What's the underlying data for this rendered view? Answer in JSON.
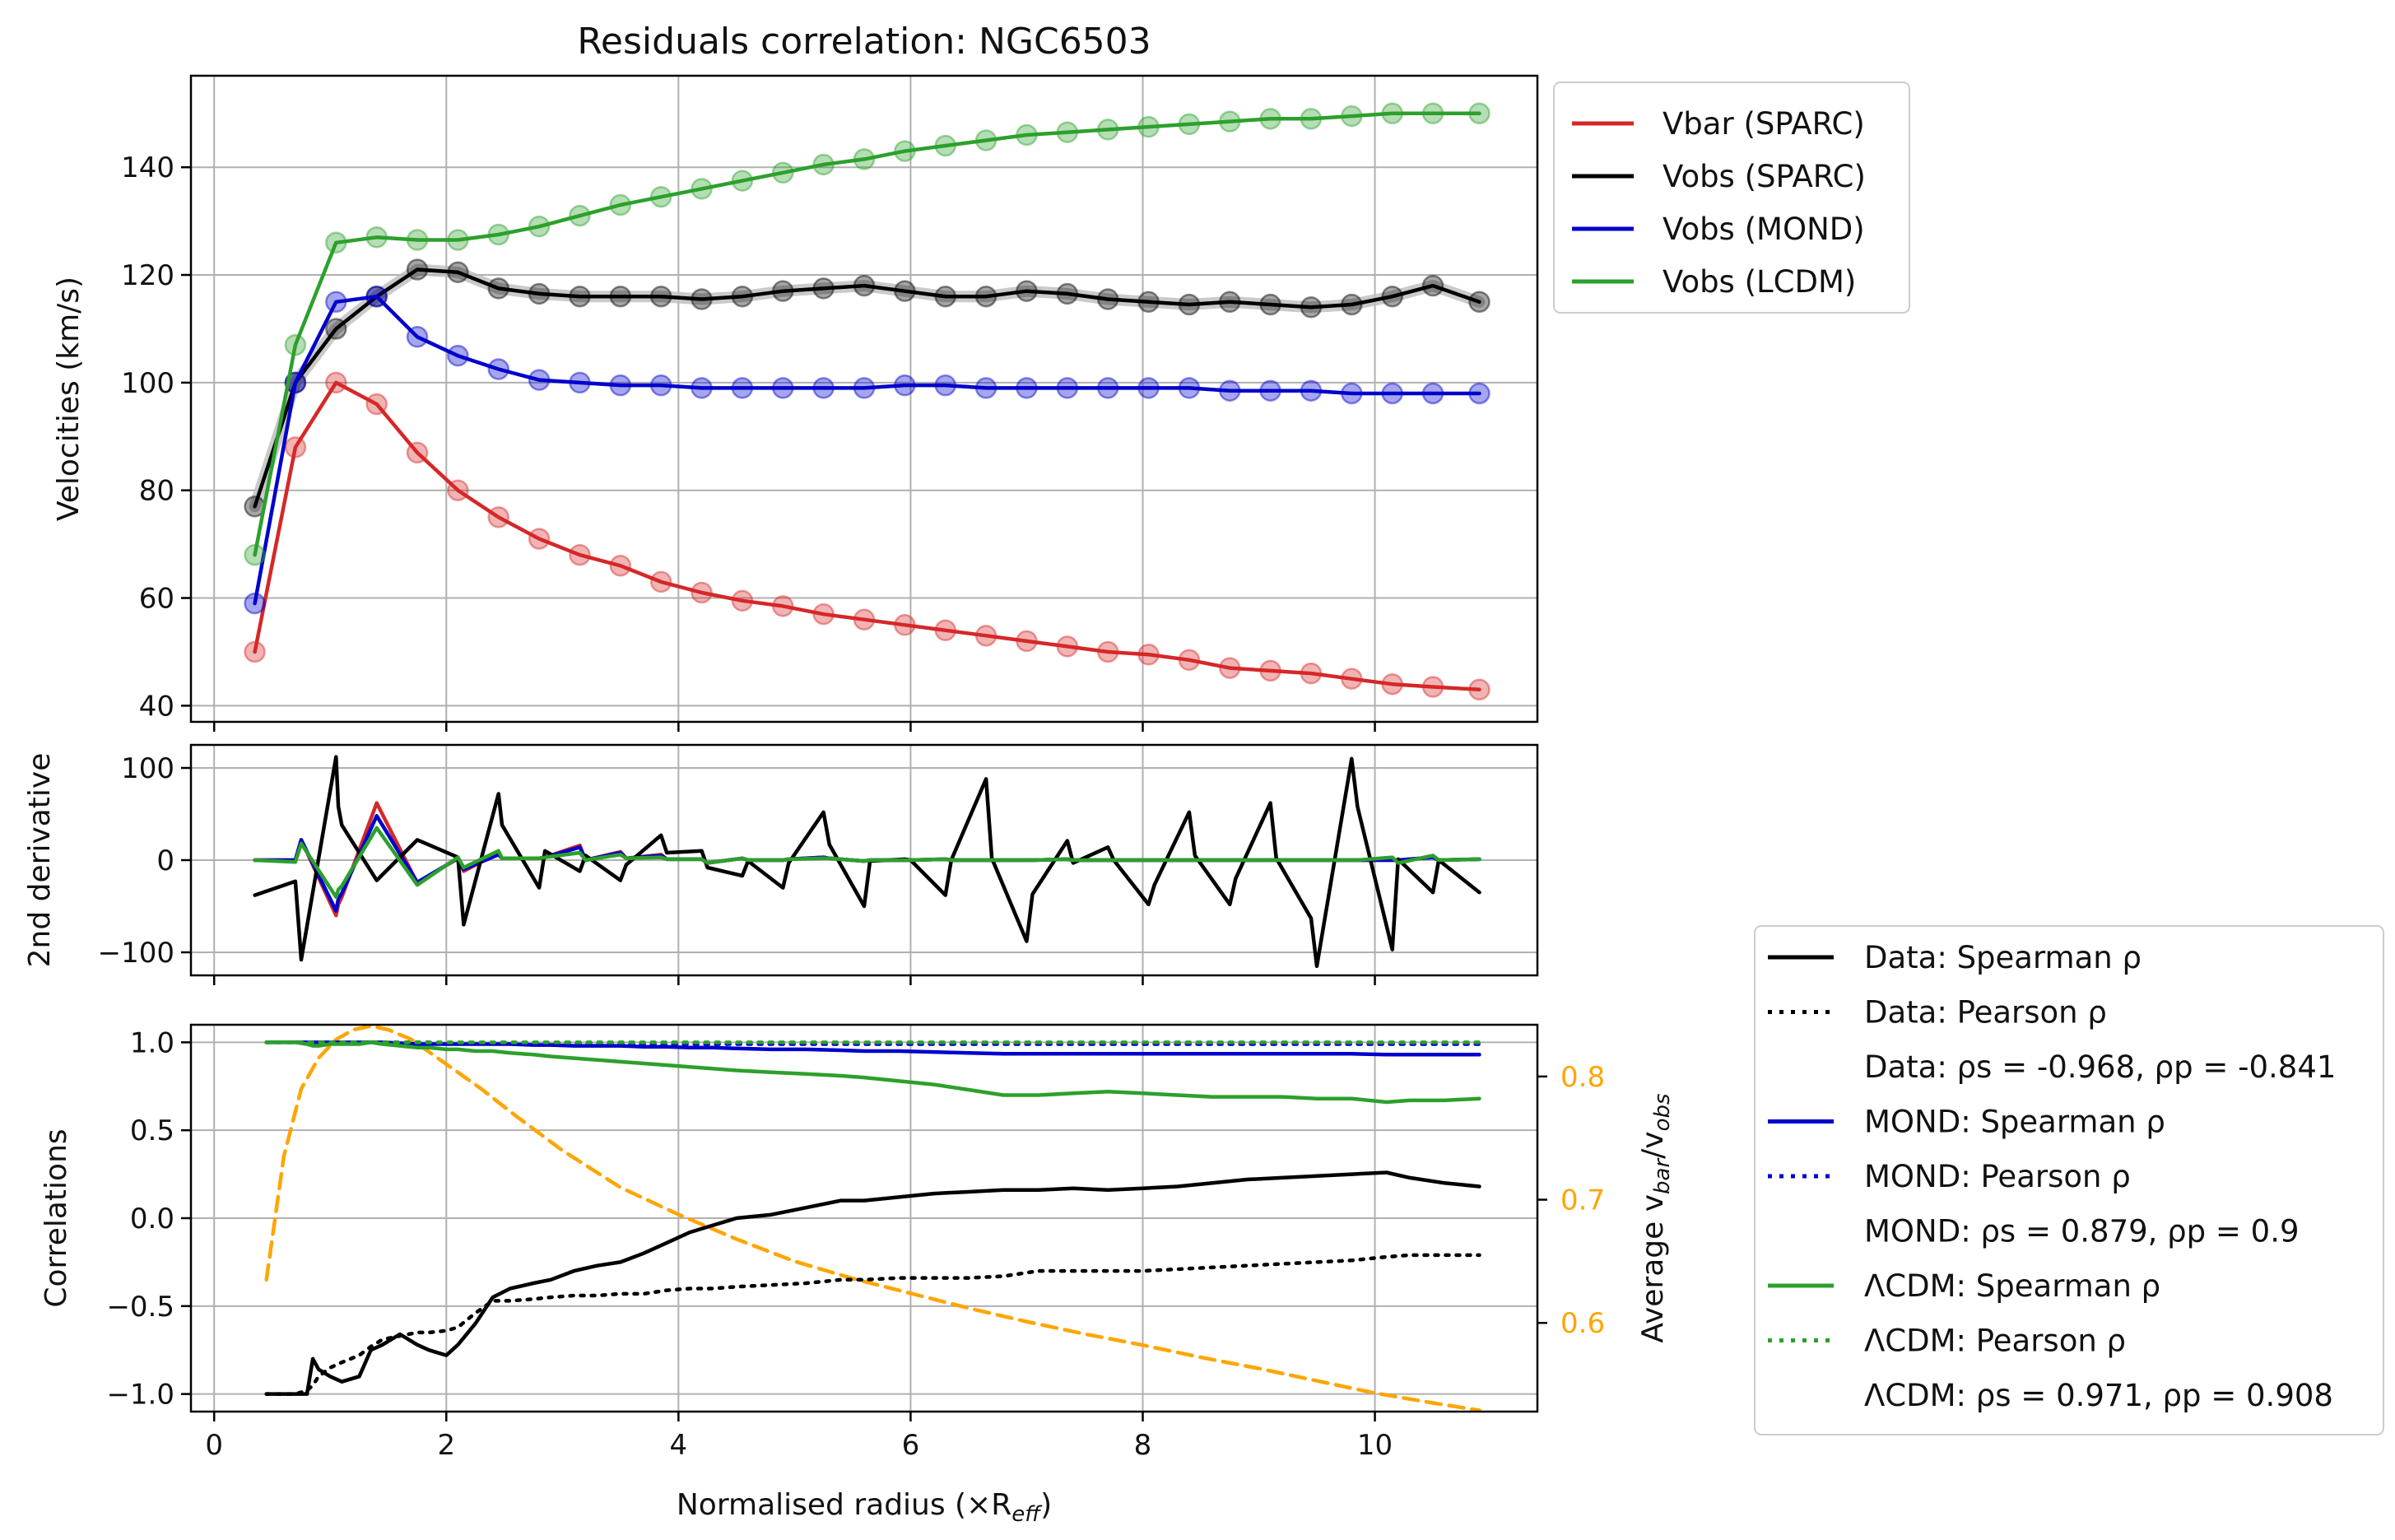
{
  "chart_data": [
    {
      "type": "line",
      "title": "Residuals correlation: NGC6503",
      "ylabel": "Velocities (km/s)",
      "xlim": [
        -0.2,
        11.4
      ],
      "ylim": [
        37,
        157
      ],
      "xticks": [
        0,
        2,
        4,
        6,
        8,
        10
      ],
      "yticks": [
        40,
        60,
        80,
        100,
        120,
        140
      ],
      "grid": true,
      "legend": {
        "placement": "outside-top-right",
        "entries": [
          "Vbar (SPARC)",
          "Vobs (SPARC)",
          "Vobs (MOND)",
          "Vobs (LCDM)"
        ]
      },
      "x": [
        0.35,
        0.7,
        1.05,
        1.4,
        1.75,
        2.1,
        2.45,
        2.8,
        3.15,
        3.5,
        3.85,
        4.2,
        4.55,
        4.9,
        5.25,
        5.6,
        5.95,
        6.3,
        6.65,
        7.0,
        7.35,
        7.7,
        8.05,
        8.4,
        8.75,
        9.1,
        9.45,
        9.8,
        10.15,
        10.5,
        10.9
      ],
      "series": [
        {
          "name": "Vbar (SPARC)",
          "color": "#d62728",
          "values": [
            50,
            88,
            100,
            96,
            87,
            80,
            75,
            71,
            68,
            66,
            63,
            61,
            59.5,
            58.5,
            57,
            56,
            55,
            54,
            53,
            52,
            51,
            50,
            49.5,
            48.5,
            47,
            46.5,
            46,
            45,
            44,
            43.5,
            43
          ]
        },
        {
          "name": "Vobs (SPARC)",
          "color": "#000000",
          "values": [
            77,
            100,
            110,
            116,
            121,
            120.5,
            117.5,
            116.5,
            116,
            116,
            116,
            115.5,
            116,
            117,
            117.5,
            118,
            117,
            116,
            116,
            117,
            116.5,
            115.5,
            115,
            114.5,
            115,
            114.5,
            114,
            114.5,
            116,
            118,
            115
          ]
        },
        {
          "name": "Vobs (MOND)",
          "color": "#0000cd",
          "values": [
            59,
            100,
            115,
            116,
            108.5,
            105,
            102.5,
            100.5,
            100,
            99.5,
            99.5,
            99,
            99,
            99,
            99,
            99,
            99.5,
            99.5,
            99,
            99,
            99,
            99,
            99,
            99,
            98.5,
            98.5,
            98.5,
            98,
            98,
            98,
            98
          ]
        },
        {
          "name": "Vobs (LCDM)",
          "color": "#2ca02c",
          "values": [
            68,
            107,
            126,
            127,
            126.5,
            126.5,
            127.5,
            129,
            131,
            133,
            134.5,
            136,
            137.5,
            139,
            140.5,
            141.5,
            143,
            144,
            145,
            146,
            146.5,
            147,
            147.5,
            148,
            148.5,
            149,
            149,
            149.5,
            150,
            150,
            150
          ]
        }
      ]
    },
    {
      "type": "line",
      "ylabel": "2nd derivative",
      "xlim": [
        -0.2,
        11.4
      ],
      "ylim": [
        -125,
        125
      ],
      "yticks": [
        100,
        0,
        -100
      ],
      "ytick_labels": [
        "100",
        "0",
        "−100"
      ],
      "grid": true,
      "x": [
        0.35,
        0.7,
        0.75,
        1.05,
        1.07,
        1.1,
        1.4,
        1.75,
        2.1,
        2.15,
        2.45,
        2.48,
        2.8,
        2.85,
        3.15,
        3.2,
        3.5,
        3.55,
        3.85,
        3.9,
        4.2,
        4.25,
        4.55,
        4.6,
        4.9,
        4.95,
        5.25,
        5.3,
        5.6,
        5.65,
        5.95,
        6.0,
        6.3,
        6.35,
        6.65,
        6.7,
        7.0,
        7.05,
        7.35,
        7.4,
        7.7,
        7.75,
        8.05,
        8.1,
        8.4,
        8.45,
        8.75,
        8.8,
        9.1,
        9.15,
        9.45,
        9.5,
        9.8,
        9.85,
        10.15,
        10.2,
        10.5,
        10.55,
        10.9
      ],
      "series": [
        {
          "name": "Data",
          "color": "#000000",
          "values": [
            -38,
            -23,
            -108,
            112,
            58,
            38,
            -22,
            22,
            3,
            -70,
            72,
            38,
            -30,
            10,
            -12,
            5,
            -22,
            -5,
            27,
            8,
            10,
            -8,
            -17,
            -1,
            -30,
            -3,
            52,
            17,
            -50,
            -1,
            1,
            0,
            -38,
            0,
            88,
            2,
            -88,
            -37,
            21,
            -3,
            14,
            0,
            -48,
            -27,
            52,
            5,
            -48,
            -20,
            62,
            2,
            -63,
            -115,
            110,
            58,
            -97,
            1,
            -35,
            0,
            -35
          ]
        },
        {
          "name": "Vbar",
          "color": "#d62728",
          "values": [
            0,
            0,
            22,
            -60,
            -48,
            -40,
            62,
            -25,
            2,
            -12,
            8,
            2,
            2,
            3,
            16,
            0,
            9,
            2,
            6,
            1,
            1,
            -3,
            2,
            0,
            0,
            1,
            3,
            2,
            -1,
            0,
            0,
            0,
            1,
            0,
            0,
            0,
            0,
            0,
            1,
            0,
            0,
            0,
            0,
            0,
            0,
            0,
            0,
            0,
            0,
            0,
            0,
            0,
            0,
            0,
            0,
            0,
            3,
            0,
            1
          ]
        },
        {
          "name": "MOND",
          "color": "#0000cd",
          "values": [
            0,
            0,
            22,
            -55,
            -42,
            -36,
            48,
            -24,
            2,
            -10,
            6,
            2,
            2,
            3,
            14,
            0,
            8,
            2,
            5,
            1,
            1,
            -3,
            2,
            0,
            0,
            1,
            3,
            2,
            -1,
            0,
            0,
            0,
            1,
            0,
            0,
            0,
            0,
            0,
            1,
            0,
            0,
            0,
            0,
            0,
            0,
            0,
            0,
            0,
            0,
            0,
            0,
            0,
            0,
            0,
            0,
            0,
            3,
            0,
            1
          ]
        },
        {
          "name": "LCDM",
          "color": "#2ca02c",
          "values": [
            0,
            -2,
            18,
            -40,
            -32,
            -28,
            35,
            -27,
            3,
            -8,
            10,
            2,
            2,
            3,
            8,
            0,
            6,
            2,
            3,
            1,
            1,
            -3,
            2,
            0,
            0,
            1,
            2,
            2,
            -1,
            0,
            0,
            0,
            1,
            0,
            0,
            0,
            0,
            0,
            1,
            0,
            0,
            0,
            0,
            0,
            0,
            0,
            0,
            0,
            0,
            0,
            0,
            0,
            0,
            0,
            3,
            -3,
            5,
            0,
            1
          ]
        }
      ]
    },
    {
      "type": "line",
      "ylabel": "Correlations",
      "xlabel": "Normalised radius (×R",
      "xlabel_sub": "eff",
      "xlabel_end": ")",
      "xlim": [
        -0.2,
        11.4
      ],
      "ylim": [
        -1.1,
        1.1
      ],
      "xticks": [
        0,
        2,
        4,
        6,
        8,
        10
      ],
      "yticks": [
        1.0,
        0.5,
        0.0,
        -0.5,
        -1.0
      ],
      "ytick_labels": [
        "1.0",
        "0.5",
        "0.0",
        "−0.5",
        "−1.0"
      ],
      "grid": true,
      "x": [
        0.45,
        0.7,
        0.8,
        0.85,
        0.9,
        1.0,
        1.1,
        1.25,
        1.35,
        1.45,
        1.6,
        1.75,
        1.85,
        2.0,
        2.1,
        2.25,
        2.4,
        2.55,
        2.75,
        2.9,
        3.1,
        3.3,
        3.5,
        3.7,
        3.9,
        4.1,
        4.3,
        4.5,
        4.8,
        5.1,
        5.4,
        5.6,
        5.9,
        6.2,
        6.5,
        6.8,
        7.1,
        7.4,
        7.7,
        8.0,
        8.3,
        8.6,
        8.9,
        9.2,
        9.5,
        9.8,
        10.1,
        10.3,
        10.6,
        10.9
      ],
      "series": [
        {
          "name": "Data: Spearman ρ",
          "color": "#000000",
          "dash": "solid",
          "values": [
            -1.0,
            -1.0,
            -1.0,
            -0.8,
            -0.86,
            -0.9,
            -0.93,
            -0.9,
            -0.75,
            -0.72,
            -0.66,
            -0.72,
            -0.75,
            -0.78,
            -0.72,
            -0.6,
            -0.45,
            -0.4,
            -0.37,
            -0.35,
            -0.3,
            -0.27,
            -0.25,
            -0.2,
            -0.14,
            -0.08,
            -0.04,
            0.0,
            0.02,
            0.06,
            0.1,
            0.1,
            0.12,
            0.14,
            0.15,
            0.16,
            0.16,
            0.17,
            0.16,
            0.17,
            0.18,
            0.2,
            0.22,
            0.23,
            0.24,
            0.25,
            0.26,
            0.23,
            0.2,
            0.18
          ]
        },
        {
          "name": "Data: Pearson ρ",
          "color": "#000000",
          "dash": "dotted",
          "values": [
            -1.0,
            -1.0,
            -0.98,
            -0.95,
            -0.9,
            -0.85,
            -0.82,
            -0.78,
            -0.73,
            -0.69,
            -0.67,
            -0.65,
            -0.65,
            -0.64,
            -0.62,
            -0.54,
            -0.47,
            -0.47,
            -0.46,
            -0.45,
            -0.44,
            -0.44,
            -0.43,
            -0.43,
            -0.41,
            -0.4,
            -0.4,
            -0.39,
            -0.38,
            -0.37,
            -0.35,
            -0.35,
            -0.34,
            -0.34,
            -0.34,
            -0.33,
            -0.3,
            -0.3,
            -0.3,
            -0.3,
            -0.29,
            -0.28,
            -0.27,
            -0.26,
            -0.25,
            -0.24,
            -0.22,
            -0.21,
            -0.21,
            -0.21
          ]
        },
        {
          "name": "MOND: Spearman ρ",
          "color": "#0000cd",
          "dash": "solid",
          "values": [
            1.0,
            1.0,
            1.0,
            1.0,
            1.0,
            1.0,
            1.0,
            1.0,
            1.0,
            1.0,
            0.995,
            0.99,
            0.99,
            0.99,
            0.99,
            0.99,
            0.99,
            0.99,
            0.985,
            0.985,
            0.98,
            0.98,
            0.98,
            0.975,
            0.975,
            0.97,
            0.97,
            0.965,
            0.96,
            0.96,
            0.955,
            0.95,
            0.95,
            0.945,
            0.94,
            0.935,
            0.935,
            0.935,
            0.935,
            0.935,
            0.935,
            0.935,
            0.935,
            0.935,
            0.935,
            0.935,
            0.93,
            0.93,
            0.93,
            0.93
          ]
        },
        {
          "name": "MOND: Pearson ρ",
          "color": "#0000cd",
          "dash": "dotted",
          "values": [
            1.0,
            1.0,
            1.0,
            1.0,
            1.0,
            1.0,
            1.0,
            1.0,
            1.0,
            1.0,
            1.0,
            1.0,
            1.0,
            0.995,
            0.995,
            0.995,
            0.995,
            0.995,
            0.995,
            0.995,
            0.995,
            0.99,
            0.99,
            0.99,
            0.99,
            0.99,
            0.99,
            0.99,
            0.99,
            0.99,
            0.99,
            0.99,
            0.99,
            0.99,
            0.99,
            0.99,
            0.99,
            0.99,
            0.99,
            0.99,
            0.99,
            0.99,
            0.99,
            0.99,
            0.99,
            0.99,
            0.99,
            0.99,
            0.99,
            0.99
          ]
        },
        {
          "name": "ΛCDM: Spearman ρ",
          "color": "#2ca02c",
          "dash": "solid",
          "values": [
            1.0,
            1.0,
            0.99,
            0.98,
            0.98,
            0.99,
            0.99,
            0.99,
            1.0,
            0.99,
            0.98,
            0.97,
            0.97,
            0.96,
            0.96,
            0.95,
            0.95,
            0.94,
            0.93,
            0.92,
            0.91,
            0.9,
            0.89,
            0.88,
            0.87,
            0.86,
            0.85,
            0.84,
            0.83,
            0.82,
            0.81,
            0.8,
            0.78,
            0.76,
            0.73,
            0.7,
            0.7,
            0.71,
            0.72,
            0.71,
            0.7,
            0.69,
            0.69,
            0.69,
            0.68,
            0.68,
            0.66,
            0.67,
            0.67,
            0.68
          ]
        },
        {
          "name": "ΛCDM: Pearson ρ",
          "color": "#2ca02c",
          "dash": "dotted",
          "values": [
            1.0,
            1.0,
            1.0,
            1.0,
            1.0,
            1.0,
            1.0,
            1.0,
            1.0,
            1.0,
            1.0,
            1.0,
            1.0,
            1.0,
            1.0,
            1.0,
            1.0,
            1.0,
            1.0,
            1.0,
            1.0,
            1.0,
            1.0,
            1.0,
            1.0,
            1.0,
            1.0,
            1.0,
            1.0,
            1.0,
            1.0,
            1.0,
            1.0,
            1.0,
            1.0,
            1.0,
            1.0,
            1.0,
            1.0,
            1.0,
            1.0,
            1.0,
            1.0,
            1.0,
            1.0,
            1.0,
            1.0,
            1.0,
            1.0,
            1.0
          ]
        }
      ],
      "twin_axis": {
        "ylabel": "Average v",
        "ylabel_sub1": "bar",
        "ylabel_mid": "/v",
        "ylabel_sub2": "obs",
        "ylim": [
          0.528,
          0.842
        ],
        "yticks": [
          0.8,
          0.7,
          0.6
        ],
        "tick_color": "#ffa500",
        "series": {
          "name": "Average vbar/vobs",
          "color": "#ffa500",
          "dash": "dashed",
          "x": [
            0.45,
            0.6,
            0.75,
            0.9,
            1.05,
            1.2,
            1.35,
            1.5,
            1.7,
            2.0,
            2.3,
            2.6,
            3.0,
            3.5,
            4.0,
            4.5,
            5.0,
            5.5,
            6.0,
            6.5,
            7.0,
            7.5,
            8.0,
            8.5,
            9.0,
            9.5,
            10.0,
            10.5,
            10.9
          ],
          "values": [
            0.635,
            0.735,
            0.79,
            0.815,
            0.83,
            0.838,
            0.841,
            0.838,
            0.83,
            0.81,
            0.79,
            0.768,
            0.74,
            0.71,
            0.688,
            0.668,
            0.65,
            0.636,
            0.624,
            0.612,
            0.601,
            0.591,
            0.582,
            0.572,
            0.563,
            0.553,
            0.543,
            0.535,
            0.529
          ]
        }
      },
      "legend": {
        "placement": "lower-right-outside",
        "entries": [
          {
            "label": "Data: Spearman ρ",
            "color": "#000000",
            "dash": "solid"
          },
          {
            "label": "Data: Pearson ρ",
            "color": "#000000",
            "dash": "dotted"
          },
          {
            "label": "Data: ρs = -0.968, ρp = -0.841",
            "color": "",
            "dash": "none"
          },
          {
            "label": "MOND: Spearman ρ",
            "color": "#0000cd",
            "dash": "solid"
          },
          {
            "label": "MOND: Pearson ρ",
            "color": "#0000cd",
            "dash": "dotted"
          },
          {
            "label": "MOND: ρs = 0.879, ρp = 0.9",
            "color": "",
            "dash": "none"
          },
          {
            "label": "ΛCDM: Spearman ρ",
            "color": "#2ca02c",
            "dash": "solid"
          },
          {
            "label": "ΛCDM: Pearson ρ",
            "color": "#2ca02c",
            "dash": "dotted"
          },
          {
            "label": "ΛCDM: ρs = 0.971, ρp = 0.908",
            "color": "",
            "dash": "none"
          }
        ]
      }
    }
  ]
}
